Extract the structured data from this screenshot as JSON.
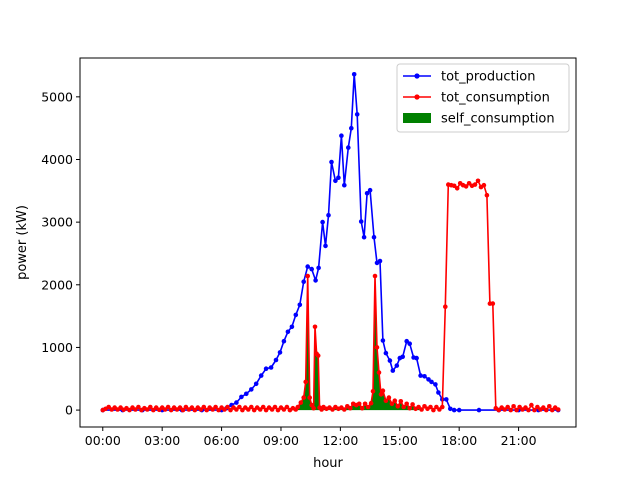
{
  "chart_data": {
    "type": "line",
    "title": "",
    "xlabel": "hour",
    "ylabel": "power (kW)",
    "x_unit": "hours since 00:00",
    "xlim": [
      -1.15,
      23.9
    ],
    "ylim": [
      -270,
      5620
    ],
    "xticks": [
      {
        "value": 0,
        "label": "00:00"
      },
      {
        "value": 3,
        "label": "03:00"
      },
      {
        "value": 6,
        "label": "06:00"
      },
      {
        "value": 9,
        "label": "09:00"
      },
      {
        "value": 12,
        "label": "12:00"
      },
      {
        "value": 15,
        "label": "15:00"
      },
      {
        "value": 18,
        "label": "18:00"
      },
      {
        "value": 21,
        "label": "21:00"
      }
    ],
    "yticks": [
      {
        "value": 0,
        "label": "0"
      },
      {
        "value": 1000,
        "label": "1000"
      },
      {
        "value": 2000,
        "label": "2000"
      },
      {
        "value": 3000,
        "label": "3000"
      },
      {
        "value": 4000,
        "label": "4000"
      },
      {
        "value": 5000,
        "label": "5000"
      }
    ],
    "grid": false,
    "legend": {
      "position": "top-right",
      "entries": [
        {
          "label": "tot_production",
          "style": "line-marker",
          "color": "#0000ff"
        },
        {
          "label": "tot_consumption",
          "style": "line-marker",
          "color": "#ff0000"
        },
        {
          "label": "self_consumption",
          "style": "patch",
          "color": "#008000"
        }
      ]
    },
    "series": [
      {
        "name": "tot_production",
        "color": "#0000ff",
        "marker": "dot",
        "points": [
          [
            0,
            0
          ],
          [
            1,
            0
          ],
          [
            2,
            0
          ],
          [
            3,
            0
          ],
          [
            4,
            0
          ],
          [
            5,
            0
          ],
          [
            6,
            0
          ],
          [
            6.25,
            30
          ],
          [
            6.5,
            80
          ],
          [
            6.75,
            120
          ],
          [
            7.0,
            210
          ],
          [
            7.25,
            260
          ],
          [
            7.5,
            330
          ],
          [
            7.75,
            420
          ],
          [
            8.0,
            550
          ],
          [
            8.25,
            660
          ],
          [
            8.5,
            680
          ],
          [
            8.75,
            800
          ],
          [
            8.95,
            920
          ],
          [
            9.15,
            1100
          ],
          [
            9.35,
            1250
          ],
          [
            9.55,
            1330
          ],
          [
            9.75,
            1520
          ],
          [
            9.95,
            1680
          ],
          [
            10.15,
            2050
          ],
          [
            10.35,
            2290
          ],
          [
            10.55,
            2250
          ],
          [
            10.75,
            2070
          ],
          [
            10.9,
            2270
          ],
          [
            11.1,
            3000
          ],
          [
            11.25,
            2620
          ],
          [
            11.4,
            3110
          ],
          [
            11.55,
            3960
          ],
          [
            11.75,
            3660
          ],
          [
            11.9,
            3710
          ],
          [
            12.05,
            4380
          ],
          [
            12.2,
            3590
          ],
          [
            12.4,
            4190
          ],
          [
            12.55,
            4500
          ],
          [
            12.7,
            5360
          ],
          [
            12.85,
            4720
          ],
          [
            13.05,
            3010
          ],
          [
            13.2,
            2760
          ],
          [
            13.35,
            3460
          ],
          [
            13.5,
            3510
          ],
          [
            13.7,
            2760
          ],
          [
            13.85,
            2350
          ],
          [
            14.0,
            2380
          ],
          [
            14.15,
            1110
          ],
          [
            14.3,
            910
          ],
          [
            14.5,
            790
          ],
          [
            14.65,
            630
          ],
          [
            14.85,
            710
          ],
          [
            15.0,
            830
          ],
          [
            15.15,
            850
          ],
          [
            15.35,
            1100
          ],
          [
            15.5,
            1060
          ],
          [
            15.7,
            840
          ],
          [
            15.85,
            830
          ],
          [
            16.05,
            550
          ],
          [
            16.25,
            540
          ],
          [
            16.45,
            490
          ],
          [
            16.6,
            450
          ],
          [
            16.8,
            410
          ],
          [
            16.95,
            280
          ],
          [
            17.15,
            170
          ],
          [
            17.35,
            170
          ],
          [
            17.55,
            20
          ],
          [
            17.75,
            0
          ],
          [
            18,
            0
          ],
          [
            19,
            0
          ],
          [
            20,
            0
          ],
          [
            21,
            0
          ],
          [
            22,
            0
          ],
          [
            23,
            0
          ]
        ]
      },
      {
        "name": "tot_consumption",
        "color": "#ff0000",
        "marker": "dot",
        "points": [
          [
            0,
            0
          ],
          [
            0.15,
            20
          ],
          [
            0.3,
            50
          ],
          [
            0.45,
            10
          ],
          [
            0.6,
            40
          ],
          [
            0.75,
            10
          ],
          [
            0.9,
            40
          ],
          [
            1.05,
            5
          ],
          [
            1.2,
            30
          ],
          [
            1.35,
            0
          ],
          [
            1.5,
            40
          ],
          [
            1.65,
            10
          ],
          [
            1.8,
            50
          ],
          [
            1.95,
            0
          ],
          [
            2.1,
            30
          ],
          [
            2.25,
            10
          ],
          [
            2.4,
            50
          ],
          [
            2.55,
            0
          ],
          [
            2.7,
            40
          ],
          [
            2.85,
            5
          ],
          [
            3.0,
            40
          ],
          [
            3.15,
            10
          ],
          [
            3.3,
            50
          ],
          [
            3.45,
            0
          ],
          [
            3.6,
            40
          ],
          [
            3.75,
            10
          ],
          [
            3.9,
            40
          ],
          [
            4.05,
            0
          ],
          [
            4.2,
            50
          ],
          [
            4.35,
            10
          ],
          [
            4.5,
            40
          ],
          [
            4.65,
            0
          ],
          [
            4.8,
            40
          ],
          [
            4.95,
            10
          ],
          [
            5.1,
            50
          ],
          [
            5.25,
            0
          ],
          [
            5.4,
            40
          ],
          [
            5.55,
            10
          ],
          [
            5.7,
            50
          ],
          [
            5.85,
            0
          ],
          [
            6.0,
            40
          ],
          [
            6.15,
            10
          ],
          [
            6.3,
            50
          ],
          [
            6.45,
            0
          ],
          [
            6.6,
            40
          ],
          [
            6.75,
            10
          ],
          [
            6.9,
            50
          ],
          [
            7.05,
            0
          ],
          [
            7.2,
            40
          ],
          [
            7.35,
            10
          ],
          [
            7.5,
            50
          ],
          [
            7.65,
            0
          ],
          [
            7.8,
            40
          ],
          [
            7.95,
            10
          ],
          [
            8.1,
            50
          ],
          [
            8.25,
            0
          ],
          [
            8.4,
            40
          ],
          [
            8.55,
            10
          ],
          [
            8.7,
            50
          ],
          [
            8.85,
            0
          ],
          [
            9.0,
            40
          ],
          [
            9.15,
            10
          ],
          [
            9.3,
            50
          ],
          [
            9.45,
            0
          ],
          [
            9.6,
            30
          ],
          [
            9.75,
            10
          ],
          [
            9.85,
            50
          ],
          [
            10.0,
            120
          ],
          [
            10.15,
            200
          ],
          [
            10.25,
            450
          ],
          [
            10.35,
            2140
          ],
          [
            10.45,
            200
          ],
          [
            10.55,
            80
          ],
          [
            10.65,
            30
          ],
          [
            10.72,
            1330
          ],
          [
            10.8,
            900
          ],
          [
            10.88,
            870
          ],
          [
            10.95,
            40
          ],
          [
            11.05,
            10
          ],
          [
            11.15,
            50
          ],
          [
            11.3,
            20
          ],
          [
            11.45,
            40
          ],
          [
            11.6,
            10
          ],
          [
            11.75,
            50
          ],
          [
            11.9,
            20
          ],
          [
            12.05,
            40
          ],
          [
            12.2,
            10
          ],
          [
            12.35,
            60
          ],
          [
            12.5,
            30
          ],
          [
            12.65,
            100
          ],
          [
            12.8,
            80
          ],
          [
            12.95,
            100
          ],
          [
            13.1,
            30
          ],
          [
            13.25,
            100
          ],
          [
            13.4,
            50
          ],
          [
            13.55,
            110
          ],
          [
            13.65,
            300
          ],
          [
            13.75,
            2140
          ],
          [
            13.85,
            1000
          ],
          [
            13.95,
            600
          ],
          [
            14.05,
            250
          ],
          [
            14.15,
            310
          ],
          [
            14.3,
            150
          ],
          [
            14.45,
            200
          ],
          [
            14.6,
            100
          ],
          [
            14.75,
            150
          ],
          [
            14.9,
            60
          ],
          [
            15.05,
            140
          ],
          [
            15.2,
            50
          ],
          [
            15.35,
            100
          ],
          [
            15.5,
            30
          ],
          [
            15.65,
            90
          ],
          [
            15.8,
            20
          ],
          [
            15.95,
            50
          ],
          [
            16.1,
            10
          ],
          [
            16.25,
            60
          ],
          [
            16.4,
            20
          ],
          [
            16.55,
            50
          ],
          [
            16.7,
            0
          ],
          [
            16.85,
            50
          ],
          [
            17.0,
            10
          ],
          [
            17.15,
            50
          ],
          [
            17.3,
            1650
          ],
          [
            17.45,
            3600
          ],
          [
            17.6,
            3590
          ],
          [
            17.75,
            3580
          ],
          [
            17.9,
            3540
          ],
          [
            18.05,
            3620
          ],
          [
            18.2,
            3590
          ],
          [
            18.35,
            3570
          ],
          [
            18.5,
            3620
          ],
          [
            18.65,
            3580
          ],
          [
            18.8,
            3600
          ],
          [
            18.95,
            3660
          ],
          [
            19.1,
            3560
          ],
          [
            19.25,
            3590
          ],
          [
            19.4,
            3430
          ],
          [
            19.55,
            1700
          ],
          [
            19.7,
            1700
          ],
          [
            19.85,
            30
          ],
          [
            20.0,
            0
          ],
          [
            20.15,
            40
          ],
          [
            20.3,
            10
          ],
          [
            20.45,
            50
          ],
          [
            20.6,
            0
          ],
          [
            20.75,
            60
          ],
          [
            20.9,
            0
          ],
          [
            21.05,
            50
          ],
          [
            21.2,
            10
          ],
          [
            21.35,
            40
          ],
          [
            21.5,
            0
          ],
          [
            21.65,
            80
          ],
          [
            21.8,
            0
          ],
          [
            21.95,
            50
          ],
          [
            22.1,
            10
          ],
          [
            22.25,
            40
          ],
          [
            22.4,
            0
          ],
          [
            22.55,
            60
          ],
          [
            22.7,
            0
          ],
          [
            22.85,
            40
          ],
          [
            23.0,
            10
          ]
        ]
      }
    ],
    "fill_series": {
      "name": "self_consumption",
      "color": "#008000",
      "type": "area",
      "description": "overlap of tot_production and tot_consumption",
      "points": [
        [
          9.6,
          0
        ],
        [
          9.75,
          10
        ],
        [
          9.85,
          50
        ],
        [
          10.0,
          120
        ],
        [
          10.15,
          200
        ],
        [
          10.25,
          450
        ],
        [
          10.35,
          2140
        ],
        [
          10.45,
          200
        ],
        [
          10.55,
          80
        ],
        [
          10.65,
          30
        ],
        [
          10.72,
          1330
        ],
        [
          10.8,
          900
        ],
        [
          10.88,
          870
        ],
        [
          10.95,
          40
        ],
        [
          11.05,
          10
        ],
        [
          11.15,
          50
        ],
        [
          11.3,
          20
        ],
        [
          11.45,
          40
        ],
        [
          11.6,
          10
        ],
        [
          11.75,
          50
        ],
        [
          11.9,
          20
        ],
        [
          12.05,
          40
        ],
        [
          12.2,
          10
        ],
        [
          12.35,
          60
        ],
        [
          12.5,
          30
        ],
        [
          12.65,
          100
        ],
        [
          12.8,
          80
        ],
        [
          12.95,
          100
        ],
        [
          13.1,
          30
        ],
        [
          13.25,
          100
        ],
        [
          13.4,
          50
        ],
        [
          13.55,
          110
        ],
        [
          13.65,
          300
        ],
        [
          13.75,
          2140
        ],
        [
          13.85,
          1000
        ],
        [
          13.95,
          600
        ],
        [
          14.05,
          250
        ],
        [
          14.15,
          310
        ],
        [
          14.3,
          150
        ],
        [
          14.45,
          200
        ],
        [
          14.6,
          100
        ],
        [
          14.75,
          150
        ],
        [
          14.9,
          60
        ],
        [
          15.05,
          140
        ],
        [
          15.2,
          50
        ],
        [
          15.35,
          100
        ],
        [
          15.5,
          30
        ],
        [
          15.65,
          90
        ],
        [
          15.8,
          20
        ],
        [
          15.95,
          50
        ],
        [
          16.0,
          0
        ]
      ]
    }
  }
}
